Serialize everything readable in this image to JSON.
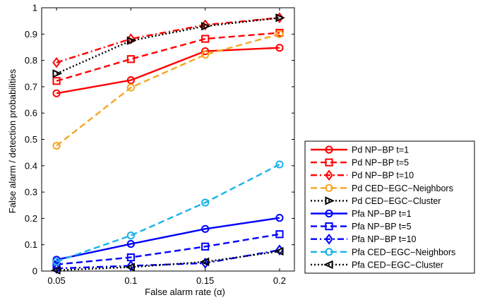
{
  "chart_data": {
    "type": "line",
    "x": [
      0.05,
      0.1,
      0.15,
      0.2
    ],
    "x_tick_labels": [
      "0.05",
      "0.1",
      "0.15",
      "0.2"
    ],
    "y_tick_labels": [
      "0",
      "0.1",
      "0.2",
      "0.3",
      "0.4",
      "0.5",
      "0.6",
      "0.7",
      "0.8",
      "0.9",
      "1"
    ],
    "xlim": [
      0.04,
      0.21
    ],
    "ylim": [
      0,
      1
    ],
    "xlabel": "False alarm rate (α)",
    "ylabel": "False alarm / detection probabilities",
    "grid": false,
    "legend_position": "outside-right-bottom",
    "series": [
      {
        "name": "Pd NP−BP t=1",
        "values": [
          0.675,
          0.725,
          0.835,
          0.848
        ],
        "color": "#ff0000",
        "dash": "solid",
        "marker": "circle"
      },
      {
        "name": "Pd NP−BP t=5",
        "values": [
          0.722,
          0.805,
          0.882,
          0.905
        ],
        "color": "#ff0000",
        "dash": "dashed",
        "marker": "square"
      },
      {
        "name": "Pd NP−BP t=10",
        "values": [
          0.792,
          0.882,
          0.935,
          0.962
        ],
        "color": "#ff0000",
        "dash": "dashdot",
        "marker": "diamond"
      },
      {
        "name": "Pd CED−EGC−Neighbors",
        "values": [
          0.476,
          0.697,
          0.822,
          0.9
        ],
        "color": "#f5a623",
        "dash": "dashed",
        "marker": "circle"
      },
      {
        "name": "Pd CED−EGC−Cluster",
        "values": [
          0.75,
          0.875,
          0.93,
          0.962
        ],
        "color": "#000000",
        "dash": "dotted",
        "marker": "triangle-right"
      },
      {
        "name": "Pfa NP−BP t=1",
        "values": [
          0.043,
          0.103,
          0.16,
          0.202
        ],
        "color": "#0000ff",
        "dash": "solid",
        "marker": "circle"
      },
      {
        "name": "Pfa NP−BP t=5",
        "values": [
          0.025,
          0.052,
          0.093,
          0.14
        ],
        "color": "#0000ff",
        "dash": "dashed",
        "marker": "square"
      },
      {
        "name": "Pfa NP−BP t=10",
        "values": [
          0.01,
          0.02,
          0.03,
          0.08
        ],
        "color": "#0000ff",
        "dash": "dashdot",
        "marker": "diamond"
      },
      {
        "name": "Pfa CED−EGC−Neighbors",
        "values": [
          0.036,
          0.135,
          0.26,
          0.405
        ],
        "color": "#1ab2e8",
        "dash": "dashed",
        "marker": "circle"
      },
      {
        "name": "Pfa CED−EGC−Cluster",
        "values": [
          0.003,
          0.015,
          0.035,
          0.075
        ],
        "color": "#000000",
        "dash": "dotted",
        "marker": "triangle-left"
      }
    ]
  }
}
